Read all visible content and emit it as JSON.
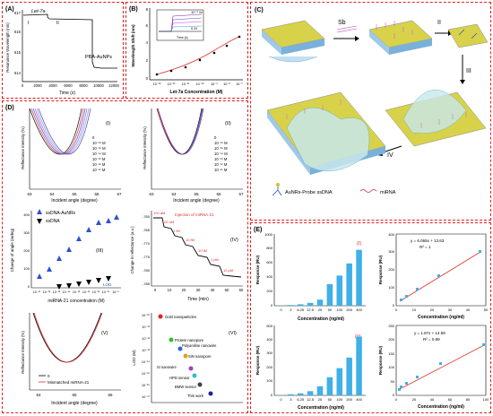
{
  "panels": {
    "A": {
      "label": "(A)",
      "annot_let7a": "Let-7a",
      "annot_pba": "PBA-AuNPs",
      "roman_i": "I",
      "roman_ii": "II",
      "xlabel": "Time (s)",
      "ylabel": "Resonance Wavelength (nm)",
      "xticks": [
        "0",
        "2000",
        "4000",
        "6000",
        "8000",
        "10000",
        "12000"
      ],
      "yticks": [
        "614",
        "615",
        "616",
        "617"
      ]
    },
    "B": {
      "label": "(B)",
      "xlabel": "Let-7a Concentration (M)",
      "ylabel": "Wavelength Shift (nm)",
      "xticks": [
        "10⁻¹³",
        "10⁻¹²",
        "10⁻¹¹",
        "10⁻¹⁰",
        "10⁻⁹",
        "10⁻⁸",
        "10⁻⁷"
      ],
      "yticks": [
        "0",
        "2",
        "4",
        "6",
        "8"
      ],
      "inset_top": "10⁻⁶ M",
      "inset_bottom": "0 M",
      "inset_x": "Time (s)"
    },
    "C": {
      "label": "(C)",
      "step_sb": "Sb",
      "step_ii": "II",
      "step_iii": "III",
      "step_iv": "IV",
      "legend_probe": "AuNRs-Probe ssDNA",
      "legend_mirna": "miRNA"
    },
    "D": {
      "label": "(D)",
      "i": {
        "roman": "(I)",
        "xlabel": "Incident angle (degree)",
        "ylabel": "Reflectance intensity (%)",
        "xticks": [
          "63",
          "64",
          "65",
          "66",
          "67"
        ],
        "legend": [
          "0",
          "10⁻¹⁶ M",
          "10⁻¹⁵ M",
          "10⁻¹⁴ M",
          "10⁻¹³ M",
          "10⁻¹² M",
          "10⁻¹¹ M"
        ]
      },
      "ii": {
        "roman": "(II)",
        "xlabel": "Incident angle (degree)",
        "ylabel": "Reflectance intensity (%)",
        "xticks": [
          "63",
          "64",
          "65",
          "66",
          "67"
        ],
        "legend": [
          "0",
          "10⁻¹⁶ M",
          "10⁻¹⁵ M",
          "10⁻¹⁴ M",
          "10⁻¹³ M",
          "10⁻¹² M",
          "10⁻¹¹ M"
        ]
      },
      "iii": {
        "roman": "(III)",
        "xlabel": "miRNA-21 concentration (M)",
        "ylabel": "Change of angle (mdeg)",
        "series": [
          "ssDNA-AuNRs",
          "ssDNA"
        ],
        "lod": "LOD",
        "xticks": [
          "10⁻¹⁷",
          "10⁻¹⁶",
          "10⁻¹⁵",
          "10⁻¹⁴",
          "10⁻¹³",
          "10⁻¹²",
          "10⁻¹¹",
          "10⁻¹⁰",
          "10⁻⁹"
        ],
        "yticks": [
          "0",
          "100",
          "200",
          "300",
          "400"
        ]
      },
      "iv": {
        "roman": "(IV)",
        "xlabel": "Time (min)",
        "ylabel": "Change in reflectance (a.u.)",
        "injection": "Injection of miRNA-21",
        "steps": [
          "100 aM",
          "100 nM",
          "1 fM",
          "10 fM",
          "10 fM",
          "1 pM",
          "10 pM"
        ],
        "xticks": [
          "0",
          "10",
          "20",
          "30",
          "40",
          "50",
          "60"
        ],
        "yticks": [
          "-760",
          "-765",
          "-770",
          "-775",
          "-780",
          "-785"
        ]
      },
      "v": {
        "roman": "(V)",
        "xlabel": "Incident angle (degree)",
        "ylabel": "Reflectance intensity (%)",
        "xticks": [
          "64",
          "65",
          "66"
        ],
        "legend": [
          "0",
          "Mismatched miRNA-21"
        ]
      },
      "vi": {
        "roman": "(VI)",
        "ylabel": "LOD (M)",
        "yticks": [
          "10⁻¹⁰",
          "10⁻¹¹",
          "10⁻¹²",
          "10⁻¹³",
          "10⁻¹⁴",
          "10⁻¹⁵",
          "10⁻¹⁶",
          "10⁻¹⁷"
        ],
        "items": [
          "Gold nanoparticles",
          "Protein nanopore",
          "Polyaniline nanowire",
          "SiN nanopore",
          "Si nanowire",
          "HPD sensor",
          "BMW sensor",
          "This work"
        ]
      }
    },
    "E": {
      "label": "(E)",
      "i": {
        "roman": "(I)",
        "xlabel": "Concentration (ng/ml)",
        "ylabel": "Response (RU)",
        "categories": [
          "0",
          "3",
          "6.25",
          "12.5",
          "25",
          "50",
          "100",
          "200",
          "400"
        ],
        "values": [
          4,
          10,
          20,
          40,
          85,
          300,
          420,
          590,
          780
        ],
        "ylim": [
          0,
          1000
        ],
        "yticks": [
          "0",
          "200",
          "400",
          "600",
          "800",
          "1000"
        ],
        "fit_xticks": [
          "0",
          "10",
          "20",
          "30",
          "40",
          "50"
        ],
        "fit_yticks": [
          "0",
          "100",
          "200",
          "300",
          "400"
        ],
        "fit_points": [
          [
            3,
            40
          ],
          [
            6.25,
            55
          ],
          [
            12.5,
            90
          ],
          [
            25,
            170
          ],
          [
            50,
            305
          ]
        ],
        "equation": "y = 6.065x + 13.63",
        "r2": "R² = 1"
      },
      "ii": {
        "roman": "(II)",
        "xlabel": "Concentration (ng/ml)",
        "ylabel": "Response (RU)",
        "categories": [
          "0",
          "3",
          "6.25",
          "12.5",
          "25",
          "50",
          "100",
          "200",
          "400"
        ],
        "values": [
          3,
          8,
          15,
          30,
          65,
          130,
          195,
          270,
          420
        ],
        "ylim": [
          0,
          500
        ],
        "yticks": [
          "0",
          "100",
          "200",
          "300",
          "400",
          "500"
        ],
        "fit_xticks": [
          "0",
          "20",
          "40",
          "60",
          "80",
          "100"
        ],
        "fit_yticks": [
          "0",
          "50",
          "100",
          "150",
          "200",
          "250"
        ],
        "fit_points": [
          [
            3,
            20
          ],
          [
            6.25,
            28
          ],
          [
            12.5,
            40
          ],
          [
            25,
            62
          ],
          [
            50,
            120
          ],
          [
            100,
            195
          ]
        ],
        "equation": "y = 1.87x + 14.59",
        "r2": "R² = 0.99"
      }
    }
  },
  "colors": {
    "accent_red": "#e02020",
    "bar_blue": "#3fb0e8",
    "fit_red": "#d03030",
    "ssdna_blue": "#3050d0",
    "gold": "#c8b432"
  }
}
